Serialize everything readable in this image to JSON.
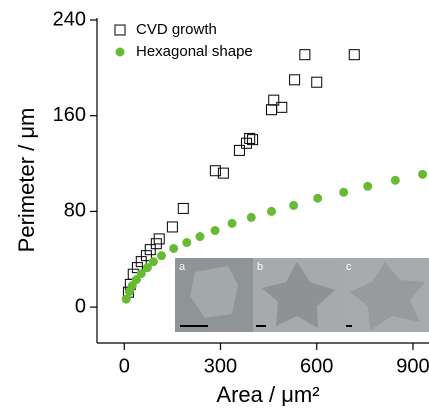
{
  "chart_data": {
    "type": "scatter",
    "xlabel": "Area / μm²",
    "ylabel": "Perimeter / μm",
    "xlim": [
      -85,
      950
    ],
    "ylim": [
      -30,
      240
    ],
    "xticks": [
      0,
      300,
      600,
      900
    ],
    "yticks": [
      0,
      80,
      160,
      240
    ],
    "legend": "top-left",
    "series": [
      {
        "name": "CVD growth",
        "color": "#000000",
        "marker": "square-open",
        "x": [
          13,
          19,
          28,
          41,
          53,
          69,
          81,
          100,
          109,
          150,
          184,
          284,
          309,
          359,
          381,
          391,
          400,
          459,
          466,
          491,
          531,
          563,
          600,
          717
        ],
        "values": [
          12.5,
          19,
          27.5,
          33,
          38,
          43,
          48,
          53,
          57,
          67,
          82.5,
          114,
          112,
          131,
          137,
          141,
          140,
          165,
          173,
          167,
          190,
          211,
          188,
          211
        ]
      },
      {
        "name": "Hexagonal shape",
        "color": "#66bb33",
        "marker": "circle",
        "x": [
          6,
          16,
          25,
          38,
          53,
          72,
          91,
          116,
          154,
          195,
          236,
          283,
          336,
          396,
          459,
          528,
          603,
          684,
          759,
          845,
          930
        ],
        "values": [
          6.7,
          13,
          18,
          23,
          28,
          33,
          38,
          43,
          49,
          54,
          59,
          64,
          70,
          75,
          80,
          85,
          91,
          96,
          101,
          106,
          111
        ]
      }
    ],
    "insets": [
      "a",
      "b",
      "c"
    ]
  }
}
